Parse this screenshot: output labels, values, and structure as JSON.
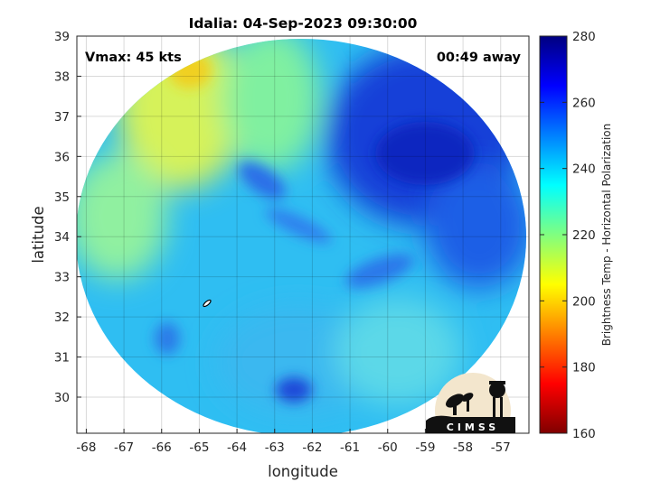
{
  "chart_data": {
    "type": "heatmap",
    "title": "Idalia: 04-Sep-2023 09:30:00",
    "xlabel": "longitude",
    "ylabel": "latitude",
    "x_ticks": [
      -68,
      -67,
      -66,
      -65,
      -64,
      -63,
      -62,
      -61,
      -60,
      -59,
      -58,
      -57
    ],
    "y_ticks": [
      39,
      38,
      37,
      36,
      35,
      34,
      33,
      32,
      31,
      30
    ],
    "xlim": [
      -68.25,
      -56.25
    ],
    "ylim": [
      29.1,
      39
    ],
    "grid": true,
    "annotations": {
      "vmax": "Vmax: 45 kts",
      "away": "00:49 away"
    },
    "colorbar": {
      "label": "Brightness Temp - Horizontal Polarization",
      "ticks": [
        280,
        260,
        240,
        220,
        200,
        180,
        160
      ],
      "range": [
        160,
        280
      ],
      "colormap": "jet"
    },
    "swath_center": {
      "lon": -62.2,
      "lat": 34.1
    },
    "swath_values_K": {
      "north_east_cold_region": 262,
      "north_west_warm_region": 208,
      "central_band": 240,
      "south_west": 228,
      "south_east": 232
    },
    "storm_center": {
      "lon": -64.8,
      "lat": 32.3
    }
  },
  "logo": {
    "text": "CIMSS"
  },
  "colors": {
    "jet_stops": [
      "#800000",
      "#ff0000",
      "#ff8000",
      "#ffff00",
      "#80ff80",
      "#00ffff",
      "#0080ff",
      "#0000ff",
      "#000080"
    ]
  }
}
